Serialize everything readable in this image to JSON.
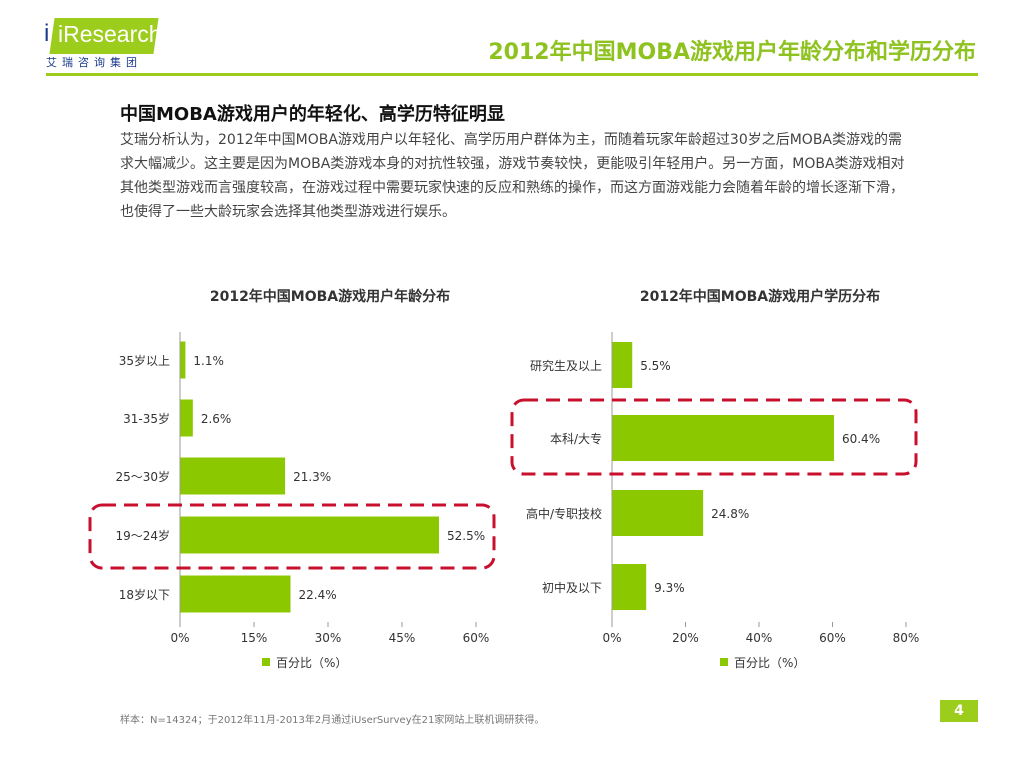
{
  "logo": {
    "brand": "iResearch",
    "sub": "艾瑞咨询集团"
  },
  "header": {
    "title": "2012年中国MOBA游戏用户年龄分布和学历分布"
  },
  "section": {
    "subtitle": "中国MOBA游戏用户的年轻化、高学历特征明显",
    "body": "艾瑞分析认为，2012年中国MOBA游戏用户以年轻化、高学历用户群体为主，而随着玩家年龄超过30岁之后MOBA类游戏的需求大幅减少。这主要是因为MOBA类游戏本身的对抗性较强，游戏节奏较快，更能吸引年轻用户。另一方面，MOBA类游戏相对其他类型游戏而言强度较高，在游戏过程中需要玩家快速的反应和熟练的操作，而这方面游戏能力会随着年龄的增长逐渐下滑，也使得了一些大龄玩家会选择其他类型游戏进行娱乐。"
  },
  "chart_data": [
    {
      "type": "bar",
      "orientation": "horizontal",
      "title": "2012年中国MOBA游戏用户年龄分布",
      "categories": [
        "35岁以上",
        "31-35岁",
        "25～30岁",
        "19～24岁",
        "18岁以下"
      ],
      "values": [
        1.1,
        2.6,
        21.3,
        52.5,
        22.4
      ],
      "data_labels": [
        "1.1%",
        "2.6%",
        "21.3%",
        "52.5%",
        "22.4%"
      ],
      "xlim": [
        0,
        60
      ],
      "xticks": [
        "0%",
        "15%",
        "30%",
        "45%",
        "60%"
      ],
      "legend": "百分比（%）",
      "legend_position": "bottom",
      "highlight": "19～24岁",
      "color": "#8cc800"
    },
    {
      "type": "bar",
      "orientation": "horizontal",
      "title": "2012年中国MOBA游戏用户学历分布",
      "categories": [
        "研究生及以上",
        "本科/大专",
        "高中/专职技校",
        "初中及以下"
      ],
      "values": [
        5.5,
        60.4,
        24.8,
        9.3
      ],
      "data_labels": [
        "5.5%",
        "60.4%",
        "24.8%",
        "9.3%"
      ],
      "xlim": [
        0,
        80
      ],
      "xticks": [
        "0%",
        "20%",
        "40%",
        "60%",
        "80%"
      ],
      "legend": "百分比（%）",
      "legend_position": "bottom",
      "highlight": "本科/大专",
      "color": "#8cc800"
    }
  ],
  "footer": {
    "note": "样本：N=14324；于2012年11月-2013年2月通过iUserSurvey在21家网站上联机调研获得。",
    "page": "4"
  }
}
